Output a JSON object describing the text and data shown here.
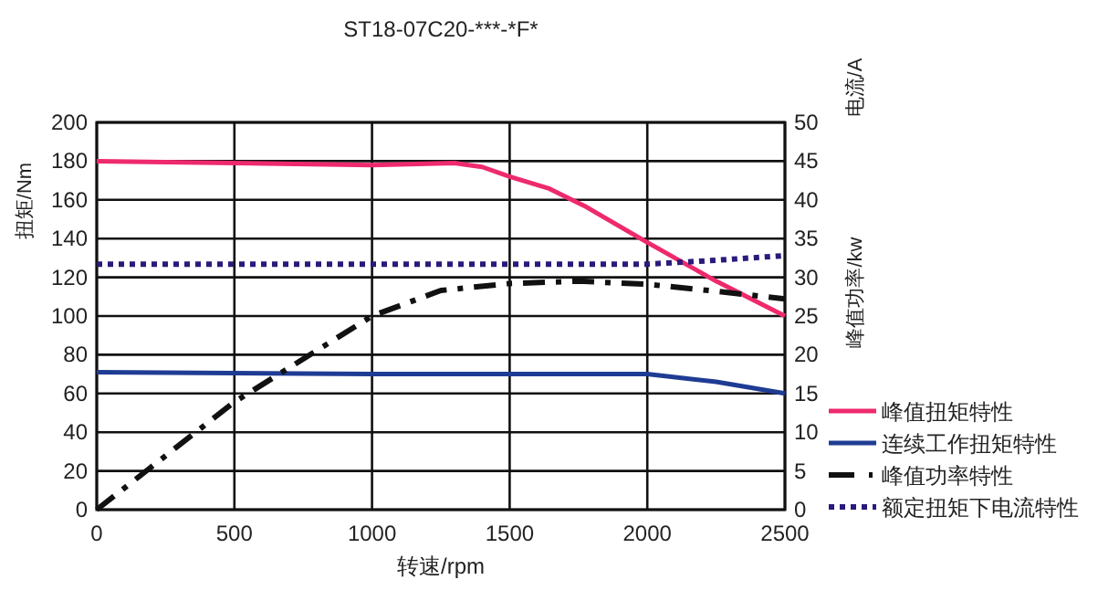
{
  "chart_data": {
    "type": "line",
    "title": "ST18-07C20-***-*F*",
    "xlabel": "转速/rpm",
    "ylabel": "扭矩/Nm",
    "y2label": "电流/A",
    "annotations": [
      "峰值功率/kw"
    ],
    "xlim": [
      0,
      2500
    ],
    "xticks": [
      0,
      500,
      1000,
      1500,
      2000,
      2500
    ],
    "ylim": [
      0,
      200
    ],
    "yticks": [
      0,
      20,
      40,
      60,
      80,
      100,
      120,
      140,
      160,
      180,
      200
    ],
    "y2lim": [
      0,
      50
    ],
    "y2ticks": [
      0,
      5,
      10,
      15,
      20,
      25,
      30,
      35,
      40,
      45,
      50
    ],
    "grid": true,
    "legend": "right",
    "marker": "none",
    "series": [
      {
        "name": "峰值扭矩特性",
        "color": "#ee2a6e",
        "line_style": "solid",
        "x": [
          0,
          500,
          1000,
          1300,
          1400,
          1500,
          1640,
          1770,
          2000,
          2250,
          2500
        ],
        "values": [
          180,
          179,
          178,
          179,
          177,
          172,
          166,
          157,
          138,
          118,
          100
        ]
      },
      {
        "name": "连续工作扭矩特性",
        "color": "#1f3c94",
        "line_style": "solid",
        "x": [
          0,
          1000,
          1500,
          2000,
          2250,
          2500
        ],
        "values": [
          71,
          70,
          70,
          70,
          66,
          60
        ]
      },
      {
        "name": "峰值功率特性",
        "color": "#111111",
        "line_style": "dashdot",
        "axis": "y2",
        "x": [
          0,
          500,
          1000,
          1250,
          1500,
          1750,
          2000,
          2250,
          2500
        ],
        "values": [
          0,
          13.9,
          25,
          28.3,
          29.2,
          29.5,
          29.1,
          28.2,
          27.2
        ]
      },
      {
        "name": "额定扭矩下电流特性",
        "color": "#2a1a7a",
        "line_style": "dotted",
        "axis": "y2",
        "x": [
          0,
          1500,
          2000,
          2250,
          2500
        ],
        "values": [
          31.7,
          31.7,
          31.7,
          32.2,
          32.8
        ]
      }
    ]
  }
}
